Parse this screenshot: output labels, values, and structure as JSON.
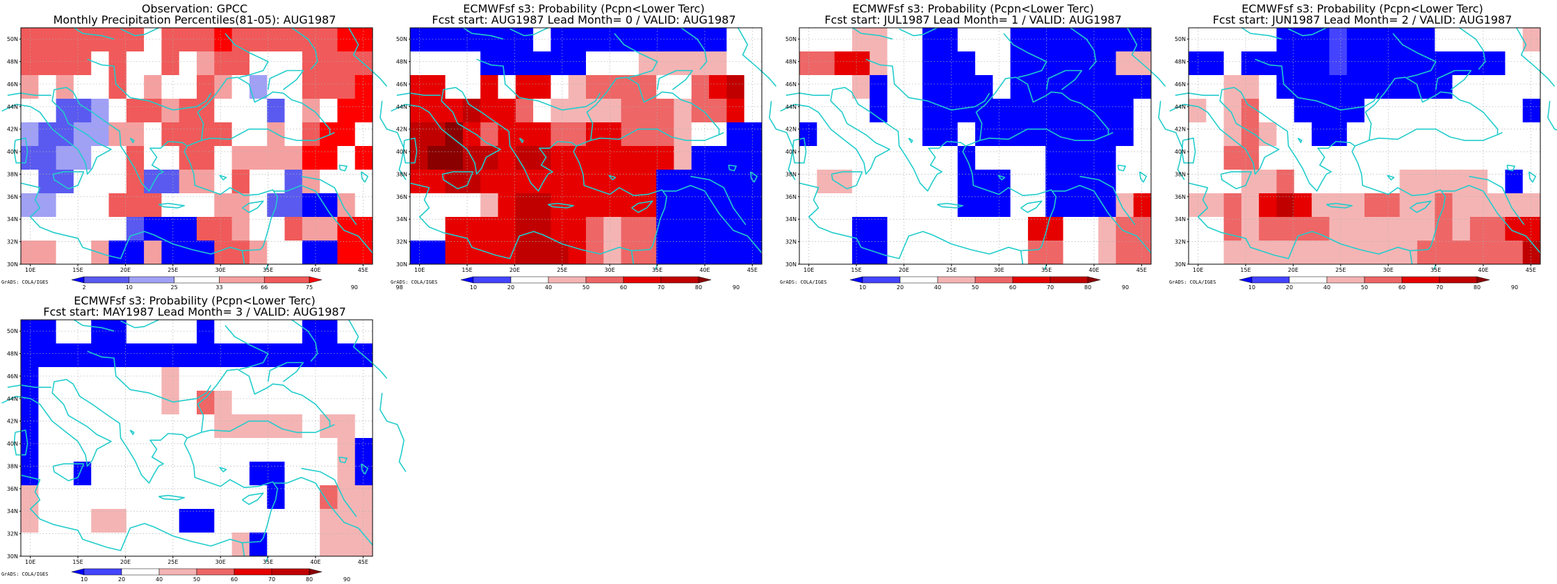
{
  "palettes": {
    "perc": [
      "#0000ff",
      "#5a5af0",
      "#a0a0f5",
      "#ffffff",
      "#f5a0a0",
      "#f05a5a",
      "#ff0000"
    ],
    "prob": [
      "#0000ff",
      "#4444ff",
      "#ffffff",
      "#f5b4b4",
      "#ee6666",
      "#e60000",
      "#c00000",
      "#8a0000"
    ]
  },
  "grid_lon": [
    10,
    15,
    20,
    25,
    30,
    35,
    40,
    45
  ],
  "grid_lat": [
    30,
    32,
    34,
    36,
    38,
    40,
    42,
    44,
    46,
    48,
    50
  ],
  "lon_labels": [
    "10E",
    "15E",
    "20E",
    "25E",
    "30E",
    "35E",
    "40E",
    "45E"
  ],
  "lat_labels": [
    "30N",
    "32N",
    "34N",
    "36N",
    "38N",
    "40N",
    "42N",
    "44N",
    "46N",
    "48N",
    "50N"
  ],
  "credit": "GrADS: COLA/IGES",
  "panels": [
    {
      "title1": "Observation: GPCC",
      "title2": "Monthly Precipitation Percentiles(81-05): AUG1987",
      "palette": "perc",
      "colorbar_labels": [
        "2",
        "10",
        "25",
        "33",
        "66",
        "75",
        "90",
        "98"
      ],
      "cells": [
        [
          5,
          5,
          5,
          5,
          5,
          5,
          5,
          3,
          5,
          5,
          5,
          6,
          5,
          5,
          5,
          5,
          5,
          5,
          6,
          6
        ],
        [
          5,
          5,
          5,
          5,
          3,
          5,
          3,
          3,
          5,
          3,
          4,
          5,
          5,
          3,
          3,
          3,
          5,
          5,
          5,
          5
        ],
        [
          4,
          3,
          4,
          3,
          3,
          5,
          3,
          4,
          3,
          3,
          5,
          4,
          3,
          2,
          3,
          3,
          5,
          5,
          5,
          6
        ],
        [
          3,
          3,
          1,
          1,
          2,
          3,
          5,
          5,
          4,
          5,
          5,
          3,
          3,
          3,
          1,
          3,
          4,
          3,
          6,
          6
        ],
        [
          2,
          1,
          1,
          2,
          2,
          4,
          4,
          3,
          5,
          5,
          5,
          5,
          3,
          3,
          4,
          3,
          5,
          6,
          6,
          3
        ],
        [
          1,
          1,
          2,
          2,
          3,
          3,
          5,
          3,
          3,
          5,
          5,
          3,
          4,
          4,
          4,
          4,
          6,
          6,
          3,
          6
        ],
        [
          3,
          1,
          1,
          3,
          3,
          3,
          5,
          1,
          1,
          4,
          4,
          3,
          5,
          3,
          3,
          1,
          4,
          3,
          3,
          3
        ],
        [
          2,
          2,
          3,
          3,
          3,
          5,
          5,
          5,
          3,
          3,
          3,
          4,
          4,
          3,
          1,
          1,
          0,
          0,
          4,
          3
        ],
        [
          3,
          3,
          3,
          3,
          3,
          3,
          1,
          0,
          0,
          0,
          5,
          5,
          4,
          3,
          3,
          5,
          4,
          4,
          6,
          6
        ],
        [
          4,
          4,
          3,
          3,
          4,
          0,
          0,
          4,
          0,
          0,
          0,
          5,
          5,
          4,
          3,
          3,
          0,
          0,
          6,
          6
        ]
      ],
      "coast_y_shift": 0
    },
    {
      "title1": "ECMWFsf s3: Probability (Pcpn<Lower Terc)",
      "title2": "Fcst start: AUG1987  Lead Month= 0 / VALID: AUG1987",
      "palette": "prob",
      "colorbar_labels": [
        "10",
        "20",
        "40",
        "50",
        "60",
        "70",
        "80",
        "90"
      ],
      "cells": [
        [
          0,
          0,
          0,
          0,
          0,
          0,
          0,
          2,
          0,
          0,
          0,
          0,
          0,
          0,
          0,
          0,
          0,
          0,
          2,
          2
        ],
        [
          2,
          2,
          2,
          2,
          0,
          0,
          0,
          0,
          0,
          0,
          2,
          2,
          2,
          3,
          3,
          3,
          3,
          3,
          2,
          2
        ],
        [
          5,
          5,
          2,
          2,
          5,
          2,
          5,
          5,
          2,
          3,
          4,
          4,
          4,
          4,
          2,
          2,
          4,
          5,
          6,
          2
        ],
        [
          5,
          5,
          5,
          6,
          5,
          5,
          4,
          2,
          3,
          3,
          3,
          3,
          4,
          4,
          4,
          3,
          4,
          4,
          5,
          2
        ],
        [
          6,
          6,
          7,
          5,
          4,
          5,
          5,
          5,
          4,
          4,
          5,
          5,
          4,
          4,
          4,
          3,
          2,
          2,
          0,
          0
        ],
        [
          6,
          7,
          7,
          6,
          6,
          5,
          6,
          6,
          5,
          5,
          5,
          5,
          5,
          5,
          5,
          3,
          0,
          0,
          0,
          0
        ],
        [
          5,
          5,
          6,
          6,
          5,
          5,
          5,
          5,
          5,
          5,
          5,
          5,
          5,
          5,
          0,
          0,
          0,
          0,
          0,
          0
        ],
        [
          2,
          2,
          2,
          2,
          3,
          5,
          6,
          6,
          5,
          5,
          5,
          5,
          5,
          5,
          0,
          0,
          0,
          0,
          0,
          0
        ],
        [
          2,
          2,
          5,
          5,
          5,
          5,
          6,
          6,
          5,
          5,
          4,
          3,
          4,
          4,
          0,
          0,
          0,
          0,
          0,
          0
        ],
        [
          0,
          0,
          5,
          5,
          5,
          5,
          6,
          6,
          6,
          5,
          4,
          3,
          4,
          4,
          0,
          0,
          0,
          0,
          0,
          0
        ]
      ],
      "coast_y_shift": 0
    },
    {
      "title1": "ECMWFsf s3: Probability (Pcpn<Lower Terc)",
      "title2": "Fcst start: JUL1987  Lead Month= 1 / VALID: AUG1987",
      "palette": "prob",
      "colorbar_labels": [
        "10",
        "20",
        "40",
        "50",
        "60",
        "70",
        "80",
        "90"
      ],
      "cells": [
        [
          2,
          2,
          2,
          3,
          3,
          2,
          2,
          0,
          0,
          2,
          2,
          2,
          0,
          0,
          0,
          0,
          0,
          0,
          0,
          0
        ],
        [
          4,
          4,
          5,
          5,
          3,
          2,
          2,
          0,
          0,
          0,
          2,
          2,
          0,
          0,
          0,
          0,
          0,
          0,
          3,
          3
        ],
        [
          2,
          2,
          2,
          3,
          0,
          2,
          2,
          0,
          0,
          0,
          0,
          2,
          0,
          0,
          0,
          0,
          0,
          0,
          0,
          0
        ],
        [
          2,
          2,
          2,
          2,
          0,
          2,
          2,
          0,
          0,
          0,
          0,
          0,
          0,
          0,
          0,
          0,
          0,
          0,
          0,
          2
        ],
        [
          0,
          2,
          2,
          2,
          2,
          2,
          2,
          0,
          0,
          2,
          0,
          0,
          0,
          0,
          0,
          0,
          0,
          0,
          0,
          2
        ],
        [
          2,
          2,
          2,
          2,
          2,
          2,
          2,
          2,
          2,
          0,
          2,
          2,
          2,
          2,
          0,
          0,
          0,
          0,
          2,
          2
        ],
        [
          2,
          3,
          3,
          2,
          2,
          2,
          2,
          2,
          2,
          0,
          0,
          0,
          2,
          2,
          0,
          0,
          0,
          0,
          2,
          2
        ],
        [
          2,
          2,
          2,
          2,
          2,
          2,
          2,
          2,
          2,
          0,
          0,
          0,
          2,
          2,
          0,
          0,
          0,
          0,
          3,
          5
        ],
        [
          2,
          2,
          2,
          0,
          0,
          2,
          2,
          2,
          2,
          2,
          2,
          2,
          2,
          5,
          5,
          2,
          2,
          3,
          4,
          4
        ],
        [
          2,
          2,
          2,
          0,
          0,
          2,
          2,
          2,
          2,
          2,
          2,
          2,
          2,
          4,
          4,
          2,
          2,
          3,
          4,
          4
        ]
      ],
      "coast_y_shift": 0
    },
    {
      "title1": "ECMWFsf s3: Probability (Pcpn<Lower Terc)",
      "title2": "Fcst start: JUN1987  Lead Month= 2 / VALID: AUG1987",
      "palette": "prob",
      "colorbar_labels": [
        "10",
        "20",
        "40",
        "50",
        "60",
        "70",
        "80",
        "90"
      ],
      "cells": [
        [
          2,
          2,
          2,
          2,
          2,
          0,
          0,
          0,
          1,
          0,
          0,
          0,
          0,
          0,
          2,
          2,
          2,
          2,
          2,
          3
        ],
        [
          0,
          0,
          2,
          0,
          0,
          0,
          0,
          0,
          1,
          0,
          0,
          0,
          0,
          0,
          0,
          0,
          0,
          0,
          2,
          2
        ],
        [
          2,
          2,
          3,
          3,
          2,
          0,
          0,
          0,
          0,
          0,
          0,
          0,
          0,
          0,
          0,
          2,
          2,
          2,
          2,
          2
        ],
        [
          3,
          2,
          3,
          4,
          2,
          2,
          0,
          0,
          0,
          0,
          2,
          2,
          2,
          2,
          2,
          2,
          2,
          2,
          2,
          0
        ],
        [
          2,
          2,
          3,
          4,
          3,
          2,
          2,
          0,
          0,
          2,
          2,
          2,
          2,
          2,
          2,
          2,
          2,
          2,
          2,
          2
        ],
        [
          2,
          2,
          4,
          4,
          2,
          2,
          2,
          2,
          2,
          2,
          2,
          2,
          2,
          2,
          2,
          2,
          2,
          2,
          2,
          2
        ],
        [
          2,
          2,
          2,
          3,
          3,
          4,
          2,
          2,
          2,
          2,
          2,
          2,
          3,
          3,
          3,
          3,
          3,
          2,
          0,
          2
        ],
        [
          3,
          3,
          4,
          3,
          5,
          6,
          5,
          3,
          3,
          3,
          4,
          4,
          3,
          3,
          4,
          3,
          3,
          3,
          3,
          3
        ],
        [
          2,
          2,
          4,
          3,
          4,
          4,
          4,
          4,
          3,
          3,
          3,
          3,
          3,
          3,
          4,
          3,
          4,
          4,
          5,
          5
        ],
        [
          2,
          2,
          3,
          3,
          3,
          3,
          3,
          3,
          3,
          3,
          3,
          3,
          3,
          4,
          4,
          4,
          4,
          4,
          4,
          6
        ]
      ],
      "coast_y_shift": 0
    },
    {
      "title1": "ECMWFsf s3: Probability (Pcpn<Lower Terc)",
      "title2": "Fcst start: MAY1987  Lead Month= 3 / VALID: AUG1987",
      "palette": "prob",
      "colorbar_labels": [
        "10",
        "20",
        "40",
        "50",
        "60",
        "70",
        "80",
        "90"
      ],
      "cells": [
        [
          0,
          0,
          2,
          2,
          0,
          0,
          2,
          2,
          2,
          2,
          0,
          2,
          2,
          2,
          2,
          2,
          0,
          0,
          2,
          2
        ],
        [
          0,
          0,
          0,
          0,
          0,
          0,
          0,
          0,
          0,
          0,
          0,
          0,
          0,
          0,
          0,
          0,
          0,
          0,
          0,
          0
        ],
        [
          0,
          2,
          2,
          2,
          2,
          2,
          2,
          2,
          3,
          2,
          2,
          2,
          2,
          2,
          2,
          2,
          2,
          2,
          2,
          2
        ],
        [
          0,
          2,
          2,
          2,
          2,
          2,
          2,
          2,
          3,
          2,
          4,
          3,
          2,
          2,
          2,
          2,
          2,
          2,
          2,
          2
        ],
        [
          0,
          2,
          2,
          2,
          2,
          2,
          2,
          2,
          2,
          2,
          2,
          3,
          3,
          3,
          3,
          3,
          2,
          3,
          3,
          2
        ],
        [
          0,
          2,
          2,
          2,
          2,
          2,
          2,
          2,
          2,
          2,
          2,
          2,
          2,
          2,
          2,
          2,
          2,
          2,
          3,
          0
        ],
        [
          0,
          2,
          2,
          0,
          2,
          2,
          2,
          2,
          2,
          2,
          2,
          2,
          2,
          0,
          0,
          2,
          2,
          2,
          3,
          0
        ],
        [
          3,
          2,
          2,
          2,
          2,
          2,
          2,
          2,
          2,
          2,
          2,
          2,
          2,
          2,
          0,
          2,
          2,
          4,
          3,
          3
        ],
        [
          3,
          2,
          2,
          2,
          3,
          3,
          2,
          2,
          2,
          0,
          0,
          2,
          2,
          2,
          2,
          2,
          2,
          3,
          3,
          3
        ],
        [
          2,
          2,
          2,
          2,
          2,
          2,
          2,
          2,
          2,
          2,
          2,
          2,
          3,
          0,
          2,
          2,
          2,
          3,
          3,
          3
        ]
      ],
      "coast_y_shift": 0
    }
  ]
}
